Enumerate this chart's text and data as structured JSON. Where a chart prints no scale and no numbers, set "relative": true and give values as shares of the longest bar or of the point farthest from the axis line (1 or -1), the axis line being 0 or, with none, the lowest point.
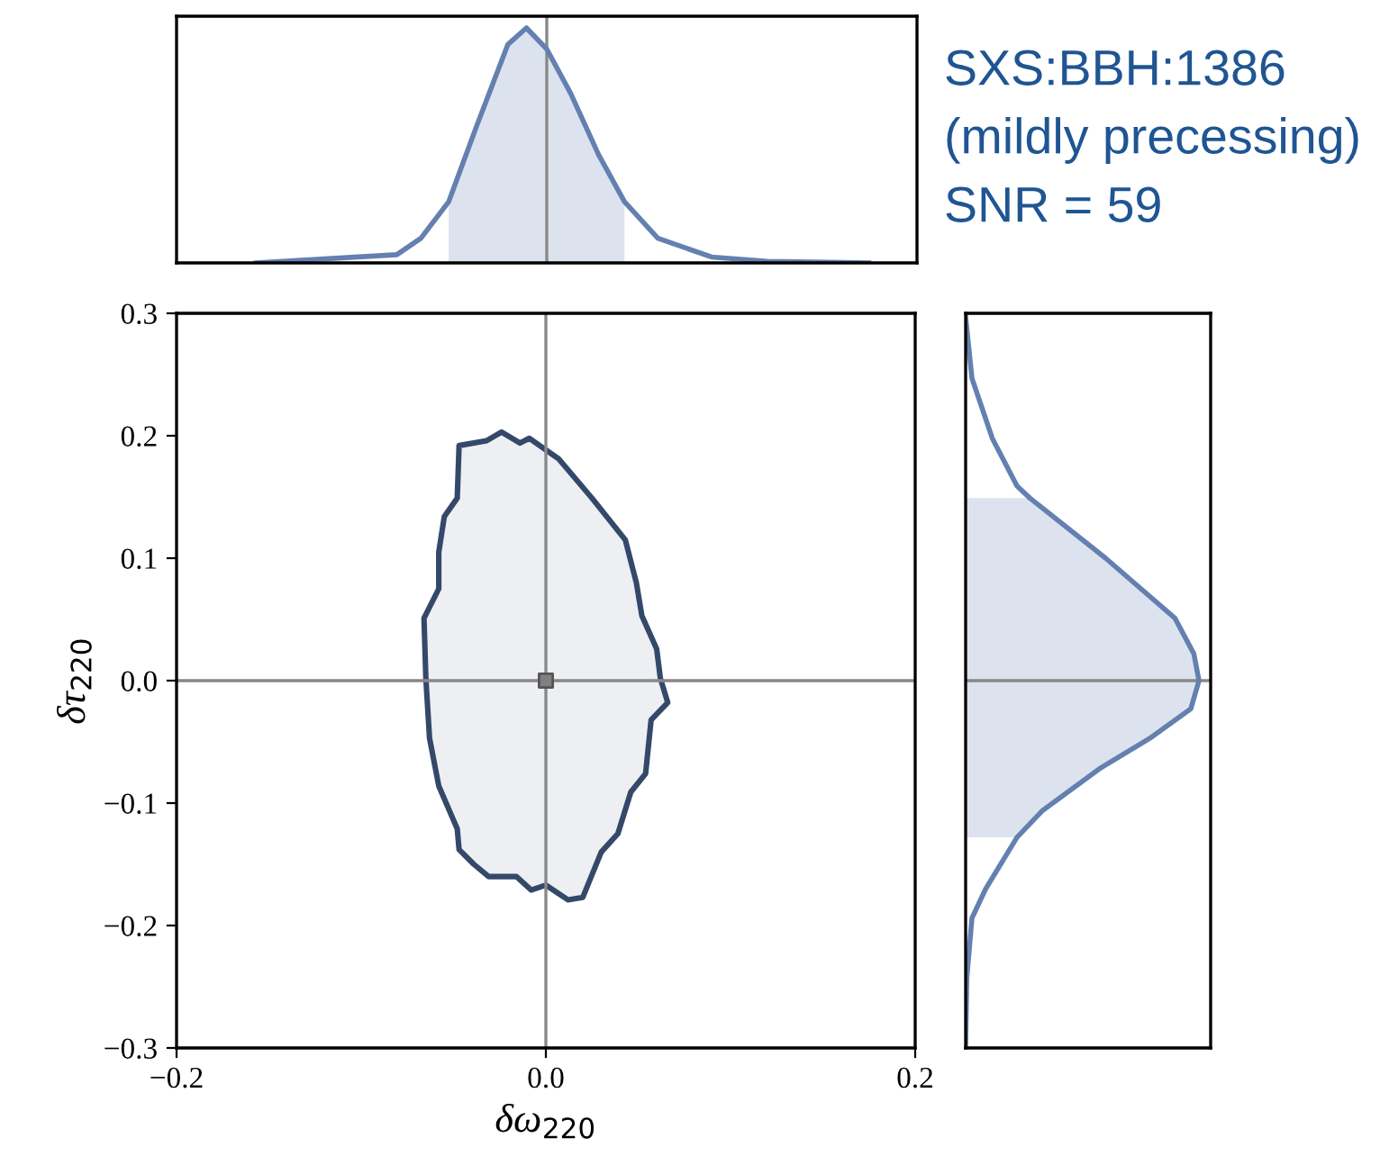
{
  "chart_data": [
    {
      "type": "line",
      "relative": true,
      "xlim": [
        -0.2,
        0.2
      ],
      "tick_labels": false,
      "annotations": [
        "SXS:BBH:1386",
        "(mildly precessing)",
        "SNR = 59"
      ],
      "ref_lines": [
        {
          "axis": "x",
          "value": 0,
          "color": "#888888"
        }
      ],
      "series": [
        {
          "type": "area",
          "color": "#dde3ee",
          "x": [
            -0.053,
            -0.038,
            -0.021,
            -0.011,
            0.0,
            0.013,
            0.028,
            0.042
          ],
          "values": [
            0.26,
            0.58,
            0.93,
            1,
            0.91,
            0.72,
            0.46,
            0.26
          ]
        },
        {
          "color": "#6480b0",
          "x": [
            -0.157,
            -0.081,
            -0.068,
            -0.053,
            -0.038,
            -0.021,
            -0.011,
            0.0,
            0.013,
            0.028,
            0.042,
            0.06,
            0.089,
            0.119,
            0.174
          ],
          "values": [
            0,
            0.035,
            0.105,
            0.26,
            0.58,
            0.93,
            1,
            0.91,
            0.72,
            0.46,
            0.26,
            0.105,
            0.025,
            0.007,
            0
          ]
        }
      ]
    },
    {
      "type": "area",
      "xlim": [
        -0.2,
        0.2
      ],
      "ylim": [
        -0.3,
        0.3
      ],
      "xticks": [
        {
          "value": -0.2,
          "label": "−0.2"
        },
        {
          "value": 0,
          "label": "0.0"
        },
        {
          "value": 0.2,
          "label": "0.2"
        }
      ],
      "yticks": [
        {
          "value": -0.3,
          "label": "−0.3"
        },
        {
          "value": -0.2,
          "label": "−0.2"
        },
        {
          "value": -0.1,
          "label": "−0.1"
        },
        {
          "value": 0,
          "label": "0.0"
        },
        {
          "value": 0.1,
          "label": "0.1"
        },
        {
          "value": 0.2,
          "label": "0.2"
        },
        {
          "value": 0.3,
          "label": "0.3"
        }
      ],
      "xlabel": "δω$_{220}$",
      "ylabel": "δτ$_{220}$",
      "ref_lines": [
        {
          "axis": "x",
          "value": 0,
          "color": "#888888"
        },
        {
          "axis": "y",
          "value": 0,
          "color": "#888888"
        }
      ],
      "series": [
        {
          "color": "#34496a",
          "x": [
            -0.047,
            -0.032,
            -0.024,
            -0.014,
            -0.009,
            0.007,
            0.025,
            0.043,
            0.049,
            0.052,
            0.06,
            0.062,
            0.066,
            0.057,
            0.054,
            0.046,
            0.039,
            0.03,
            0.02,
            0.012,
            0.0,
            -0.008,
            -0.016,
            -0.031,
            -0.039,
            -0.047,
            -0.048,
            -0.058,
            -0.063,
            -0.065,
            -0.066,
            -0.058,
            -0.058,
            -0.055,
            -0.048,
            -0.047
          ],
          "values": [
            0.192,
            0.196,
            0.203,
            0.194,
            0.198,
            0.181,
            0.149,
            0.115,
            0.08,
            0.053,
            0.026,
            0.002,
            -0.018,
            -0.032,
            -0.076,
            -0.091,
            -0.125,
            -0.14,
            -0.177,
            -0.179,
            -0.167,
            -0.171,
            -0.16,
            -0.16,
            -0.15,
            -0.138,
            -0.121,
            -0.086,
            -0.047,
            0.002,
            0.051,
            0.075,
            0.105,
            0.134,
            0.149,
            0.192
          ]
        },
        {
          "type": "scatter",
          "marker": "square",
          "color": "#808080",
          "x": [
            0
          ],
          "values": [
            0
          ]
        }
      ]
    },
    {
      "type": "line",
      "relative": true,
      "orientation": "horizontal",
      "ylim": [
        -0.3,
        0.3
      ],
      "tick_labels": false,
      "ref_lines": [
        {
          "axis": "y",
          "value": 0,
          "color": "#888888"
        }
      ],
      "series": [
        {
          "type": "area",
          "color": "#dde3ee",
          "x": [
            0.149,
            0.1,
            0.051,
            0.022,
            0.0,
            -0.023,
            -0.047,
            -0.072,
            -0.106,
            -0.128
          ],
          "values": [
            0.276,
            0.6,
            0.897,
            0.978,
            1,
            0.965,
            0.79,
            0.573,
            0.33,
            0.22
          ]
        },
        {
          "color": "#6480b0",
          "x": [
            0.297,
            0.247,
            0.198,
            0.159,
            0.149,
            0.1,
            0.051,
            0.022,
            0.0,
            -0.023,
            -0.047,
            -0.072,
            -0.106,
            -0.128,
            -0.17,
            -0.194,
            -0.243,
            -0.299
          ],
          "values": [
            0,
            0.027,
            0.114,
            0.22,
            0.276,
            0.6,
            0.897,
            0.978,
            1,
            0.965,
            0.79,
            0.573,
            0.33,
            0.22,
            0.086,
            0.027,
            0.005,
            0
          ]
        }
      ]
    }
  ]
}
